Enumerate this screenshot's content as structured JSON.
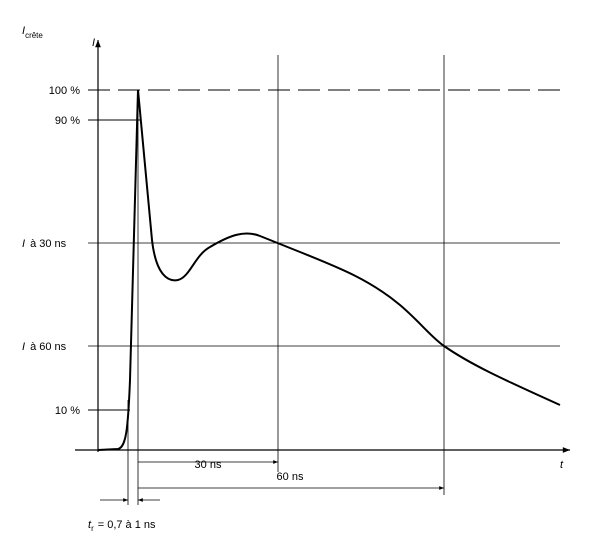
{
  "axes": {
    "y": {
      "symbol": "I",
      "sub": "crête"
    },
    "y_top": "I",
    "x": "t"
  },
  "levels": [
    {
      "text": "100 %"
    },
    {
      "text": "90 %"
    },
    {
      "symbol": "I",
      "text": "à  30 ns"
    },
    {
      "symbol": "I",
      "text": "à  60 ns"
    },
    {
      "text": "10 %"
    }
  ],
  "intervals": [
    "30 ns",
    "60 ns"
  ],
  "rise_time": {
    "symbol": "t",
    "sub": "r",
    "text": "= 0,7 à 1 ns"
  }
}
